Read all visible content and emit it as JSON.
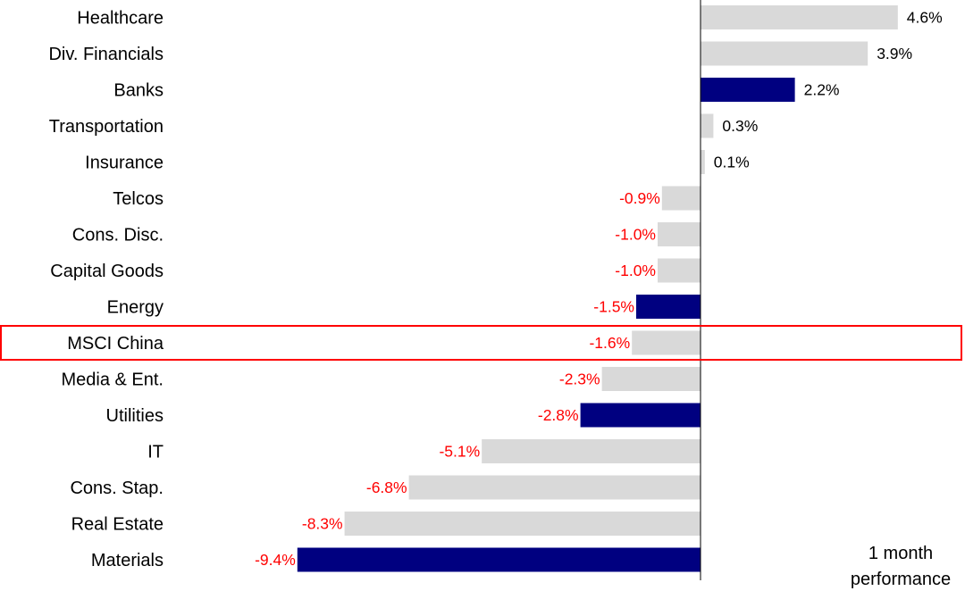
{
  "chart_data": {
    "type": "bar",
    "orientation": "horizontal",
    "categories": [
      "Healthcare",
      "Div. Financials",
      "Banks",
      "Transportation",
      "Insurance",
      "Telcos",
      "Cons. Disc.",
      "Capital Goods",
      "Energy",
      "MSCI China",
      "Media & Ent.",
      "Utilities",
      "IT",
      "Cons. Stap.",
      "Real Estate",
      "Materials"
    ],
    "values": [
      4.6,
      3.9,
      2.2,
      0.3,
      0.1,
      -0.9,
      -1.0,
      -1.0,
      -1.5,
      -1.6,
      -2.3,
      -2.8,
      -5.1,
      -6.8,
      -8.3,
      -9.4
    ],
    "value_labels": [
      "4.6%",
      "3.9%",
      "2.2%",
      "0.3%",
      "0.1%",
      "-0.9%",
      "-1.0%",
      "-1.0%",
      "-1.5%",
      "-1.6%",
      "-2.3%",
      "-2.8%",
      "-5.1%",
      "-6.8%",
      "-8.3%",
      "-9.4%"
    ],
    "highlighted_bars": [
      "Banks",
      "Energy",
      "Utilities",
      "Materials"
    ],
    "highlighted_row": "MSCI China",
    "note": [
      "1 month",
      "performance"
    ],
    "xlim": [
      -9.4,
      6.0
    ],
    "grid": false,
    "legend": "none",
    "colors": {
      "default_bar": "#d9d9d9",
      "highlight_bar": "#000080",
      "negative_label": "#ff0000",
      "positive_label": "#000000",
      "axis": "#000000",
      "highlight_box": "#ff0000"
    }
  }
}
